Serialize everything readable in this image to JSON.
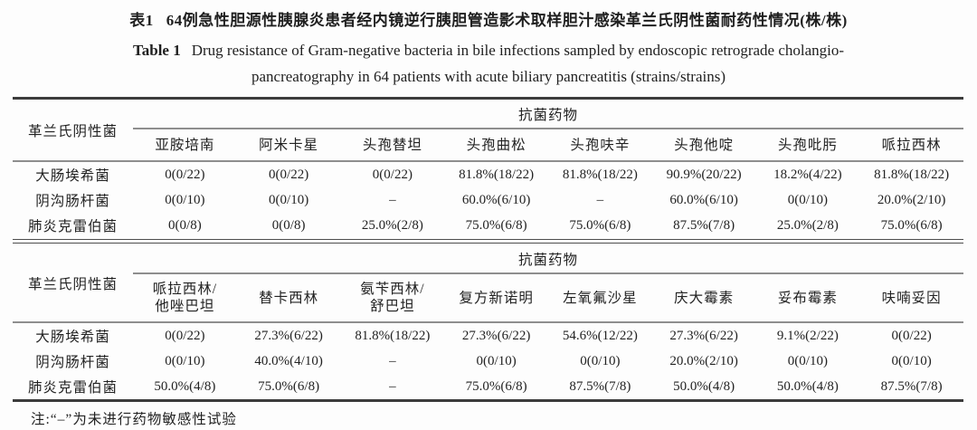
{
  "title": {
    "zh_label": "表1",
    "zh_text": "64例急性胆源性胰腺炎患者经内镜逆行胰胆管造影术取样胆汁感染革兰氏阴性菌耐药性情况(株/株)",
    "en_label": "Table 1",
    "en_line1": "Drug resistance of Gram-negative bacteria in bile infections sampled by endoscopic retrograde cholangio-",
    "en_line2": "pancreatography in 64 patients with acute biliary pancreatitis (strains/strains)"
  },
  "table": {
    "row_header_label": "革兰氏阴性菌",
    "group_header": "抗菌药物",
    "sections": [
      {
        "columns": [
          "亚胺培南",
          "阿米卡星",
          "头孢替坦",
          "头孢曲松",
          "头孢呋辛",
          "头孢他啶",
          "头孢吡肟",
          "哌拉西林"
        ],
        "rows": [
          {
            "name": "大肠埃希菌",
            "values": [
              "0(0/22)",
              "0(0/22)",
              "0(0/22)",
              "81.8%(18/22)",
              "81.8%(18/22)",
              "90.9%(20/22)",
              "18.2%(4/22)",
              "81.8%(18/22)"
            ]
          },
          {
            "name": "阴沟肠杆菌",
            "values": [
              "0(0/10)",
              "0(0/10)",
              "–",
              "60.0%(6/10)",
              "–",
              "60.0%(6/10)",
              "0(0/10)",
              "20.0%(2/10)"
            ]
          },
          {
            "name": "肺炎克雷伯菌",
            "values": [
              "0(0/8)",
              "0(0/8)",
              "25.0%(2/8)",
              "75.0%(6/8)",
              "75.0%(6/8)",
              "87.5%(7/8)",
              "25.0%(2/8)",
              "75.0%(6/8)"
            ]
          }
        ]
      },
      {
        "columns": [
          "哌拉西林/\n他唑巴坦",
          "替卡西林",
          "氨苄西林/\n舒巴坦",
          "复方新诺明",
          "左氧氟沙星",
          "庆大霉素",
          "妥布霉素",
          "呋喃妥因"
        ],
        "rows": [
          {
            "name": "大肠埃希菌",
            "values": [
              "0(0/22)",
              "27.3%(6/22)",
              "81.8%(18/22)",
              "27.3%(6/22)",
              "54.6%(12/22)",
              "27.3%(6/22)",
              "9.1%(2/22)",
              "0(0/22)"
            ]
          },
          {
            "name": "阴沟肠杆菌",
            "values": [
              "0(0/10)",
              "40.0%(4/10)",
              "–",
              "0(0/10)",
              "0(0/10)",
              "20.0%(2/10)",
              "0(0/10)",
              "0(0/10)"
            ]
          },
          {
            "name": "肺炎克雷伯菌",
            "values": [
              "50.0%(4/8)",
              "75.0%(6/8)",
              "–",
              "75.0%(6/8)",
              "87.5%(7/8)",
              "50.0%(4/8)",
              "50.0%(4/8)",
              "87.5%(7/8)"
            ]
          }
        ]
      }
    ]
  },
  "note": "注:“–”为未进行药物敏感性试验"
}
